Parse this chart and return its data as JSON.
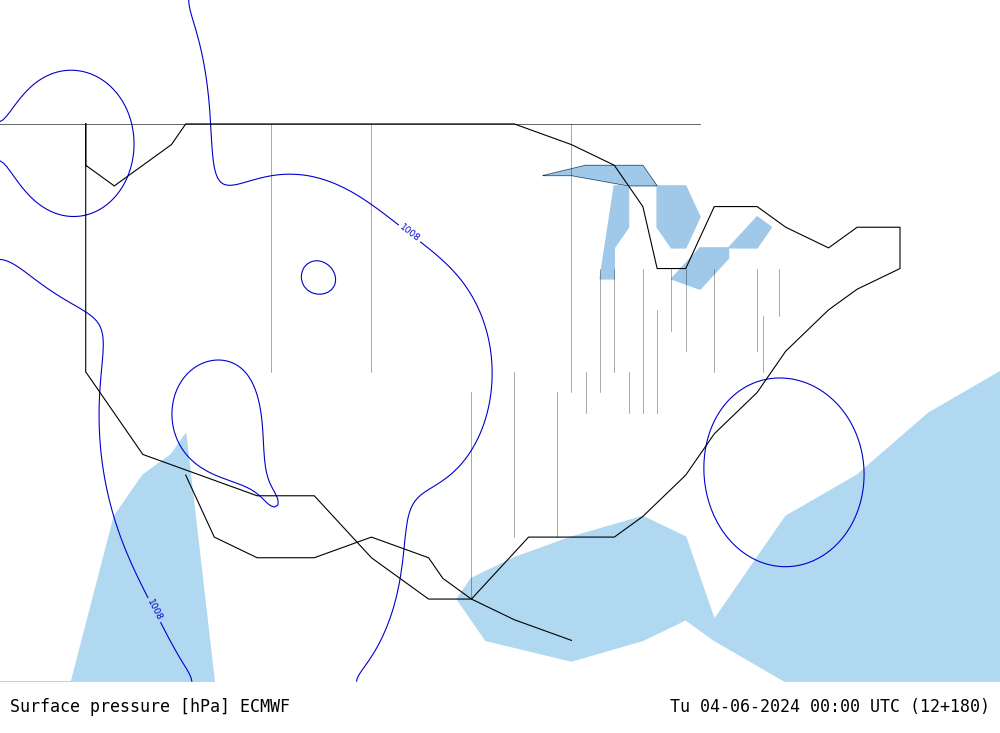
{
  "title_left": "Surface pressure [hPa] ECMWF",
  "title_right": "Tu 04-06-2024 00:00 UTC (12+180)",
  "background_color": "#ffffff",
  "land_color": "#90d060",
  "ocean_color": "#c8e8ff",
  "mountain_color": "#c0c0a0",
  "contour_color_blue": "#0000cc",
  "contour_color_red": "#cc0000",
  "label_color": "#000000",
  "bottom_bar_color": "#d0d0d0",
  "bottom_text_color": "#000000",
  "figsize": [
    10,
    7.33
  ],
  "dpi": 100
}
